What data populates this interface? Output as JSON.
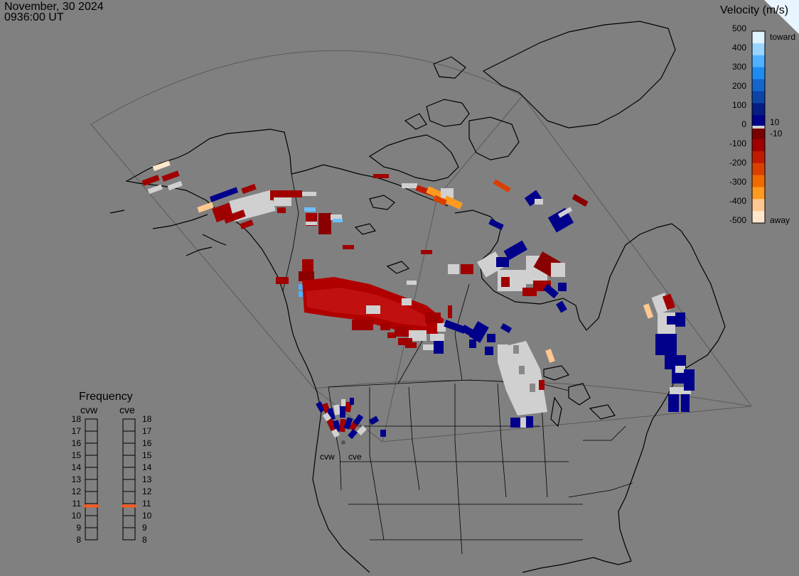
{
  "header": {
    "date": "November, 30 2024",
    "time": "0936:00 UT"
  },
  "velocity_scale": {
    "title": "Velocity (m/s)",
    "ticks": [
      "500",
      "400",
      "300",
      "200",
      "100",
      "0",
      "-100",
      "-200",
      "-300",
      "-400",
      "-500"
    ],
    "inner_labels": [
      "10",
      "-10"
    ],
    "toward_label": "toward",
    "away_label": "away",
    "colors_top_to_bottom": [
      "#e0f4ff",
      "#9bd4ff",
      "#4fb1ff",
      "#1f8bf0",
      "#1466cc",
      "#0d45a6",
      "#061c86",
      "#00008b",
      "#7a0000",
      "#a00000",
      "#c01a00",
      "#d94000",
      "#f06a00",
      "#ff9a20",
      "#ffc890",
      "#ffe6cc"
    ]
  },
  "frequency": {
    "title": "Frequency",
    "radars": [
      "cvw",
      "cve"
    ],
    "ticks": [
      "18",
      "17",
      "16",
      "15",
      "14",
      "13",
      "12",
      "11",
      "10",
      "9",
      "8"
    ],
    "cvw_mhz": 10.8,
    "cve_mhz": 10.8,
    "marker_color": "#ff5a1f"
  },
  "map": {
    "radar_labels": [
      "cvw",
      "cve"
    ],
    "fov_line_color": "#5a5a5a",
    "coast_color": "#000000",
    "background": "#808080"
  }
}
